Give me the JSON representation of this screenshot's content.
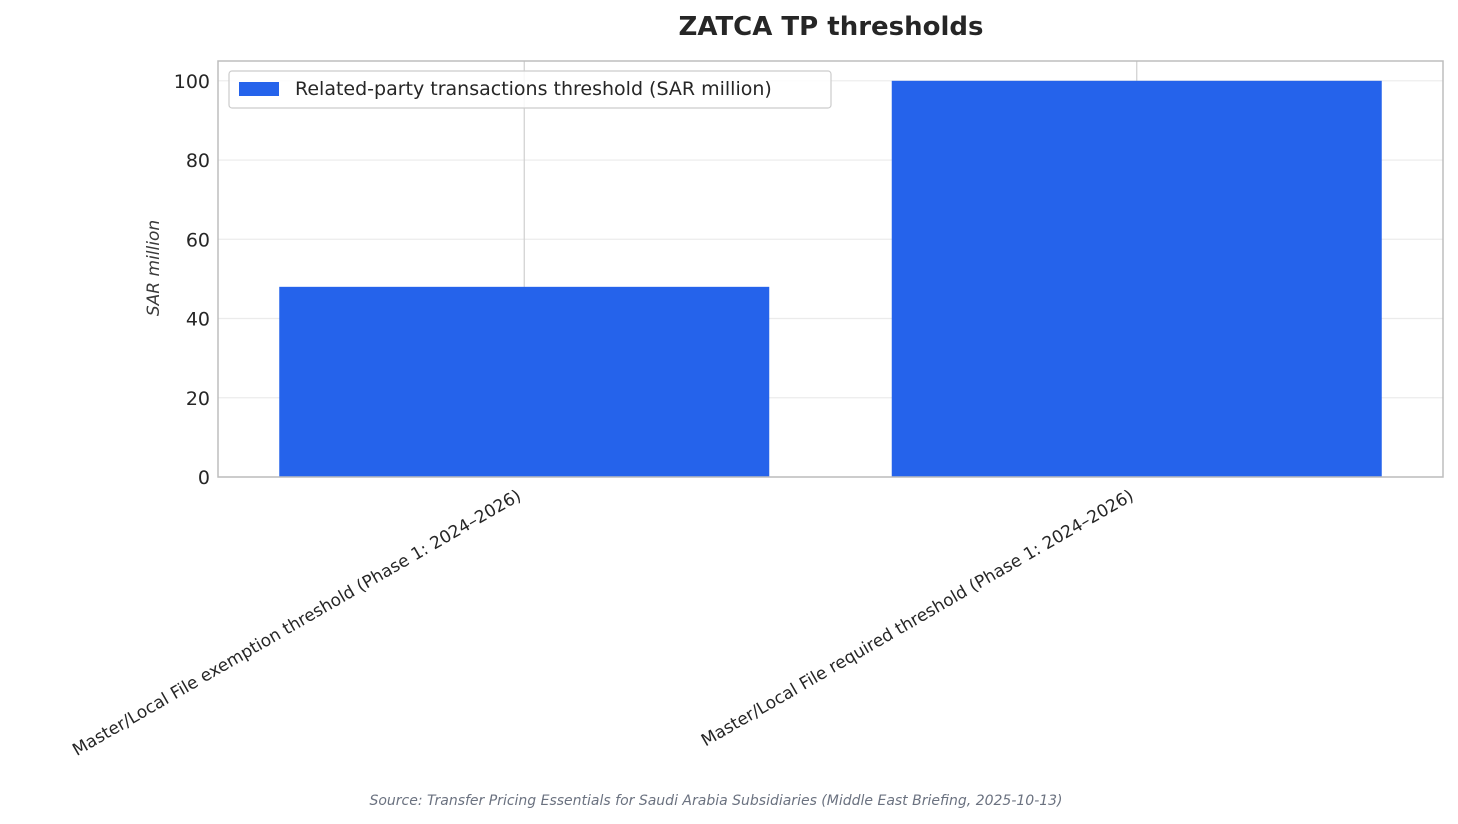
{
  "chart_data": {
    "type": "bar",
    "title": "ZATCA TP thresholds",
    "xlabel": "",
    "ylabel": "SAR million",
    "categories": [
      "Master/Local File exemption threshold (Phase 1: 2024–2026)",
      "Master/Local File required threshold (Phase 1: 2024–2026)"
    ],
    "series": [
      {
        "name": "Related-party transactions threshold (SAR million)",
        "values": [
          48,
          100
        ],
        "color": "#2563eb"
      }
    ],
    "ylim": [
      0,
      105
    ],
    "yticks": [
      0,
      20,
      40,
      60,
      80,
      100
    ],
    "grid": true,
    "legend_position": "top-left",
    "source": "Source: Transfer Pricing Essentials for Saudi Arabia Subsidiaries (Middle East Briefing, 2025-10-13)"
  }
}
